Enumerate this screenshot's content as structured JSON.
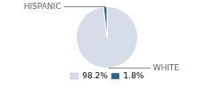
{
  "chart_data": {
    "type": "pie",
    "categories": [
      "WHITE",
      "HISPANIC"
    ],
    "values": [
      98.2,
      1.8
    ],
    "value_labels": [
      "98.2%",
      "1.8%"
    ],
    "colors": [
      "#d6dde8",
      "#2d5f8a"
    ],
    "legend": "bottom"
  }
}
